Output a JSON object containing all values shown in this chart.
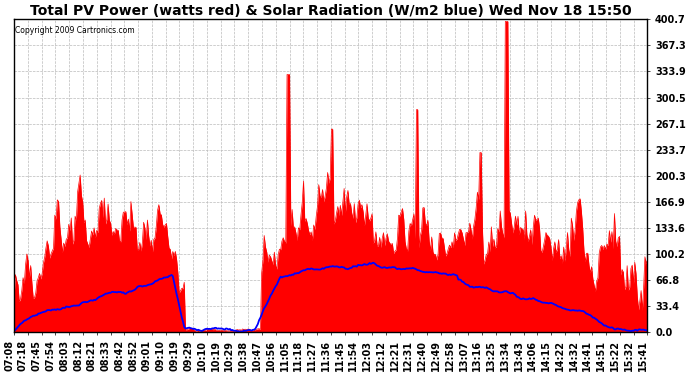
{
  "title": "Total PV Power (watts red) & Solar Radiation (W/m2 blue) Wed Nov 18 15:50",
  "copyright_text": "Copyright 2009 Cartronics.com",
  "background_color": "#ffffff",
  "plot_bg_color": "#ffffff",
  "grid_color": "#bbbbbb",
  "pv_color": "#ff0000",
  "radiation_color": "#0000ff",
  "ylim": [
    0.0,
    400.7
  ],
  "yticks": [
    0.0,
    33.4,
    66.8,
    100.2,
    133.6,
    166.9,
    200.3,
    233.7,
    267.1,
    300.5,
    333.9,
    367.3,
    400.7
  ],
  "xlabel_rotation": 90,
  "title_fontsize": 10,
  "tick_fontsize": 7,
  "x_labels": [
    "07:08",
    "07:18",
    "07:45",
    "07:54",
    "08:03",
    "08:12",
    "08:21",
    "08:33",
    "08:42",
    "08:52",
    "09:01",
    "09:10",
    "09:19",
    "09:29",
    "10:10",
    "10:19",
    "10:29",
    "10:38",
    "10:47",
    "10:56",
    "11:05",
    "11:18",
    "11:27",
    "11:36",
    "11:45",
    "11:54",
    "12:03",
    "12:12",
    "12:21",
    "12:31",
    "12:40",
    "12:49",
    "12:58",
    "13:07",
    "13:16",
    "13:25",
    "13:34",
    "13:43",
    "14:06",
    "14:15",
    "14:22",
    "14:32",
    "14:41",
    "14:51",
    "15:22",
    "15:32",
    "15:41"
  ]
}
